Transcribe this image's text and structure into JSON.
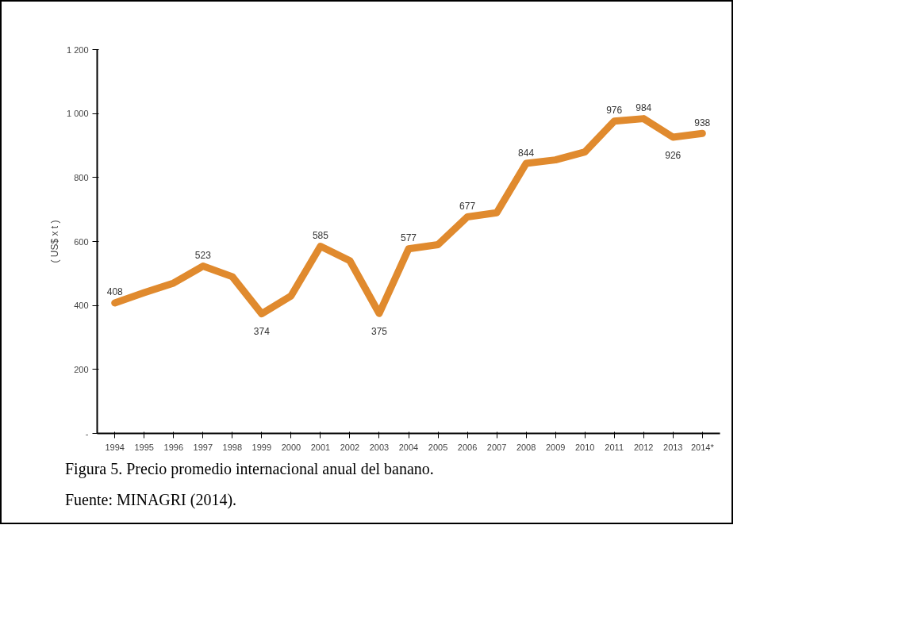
{
  "chart_data": {
    "type": "line",
    "ylabel": "( US$ x t )",
    "categories": [
      "1994",
      "1995",
      "1996",
      "1997",
      "1998",
      "1999",
      "2000",
      "2001",
      "2002",
      "2003",
      "2004",
      "2005",
      "2006",
      "2007",
      "2008",
      "2009",
      "2010",
      "2011",
      "2012",
      "2013",
      "2014*"
    ],
    "series": [
      {
        "color": "#e08a2e",
        "values": [
          408,
          440,
          470,
          523,
          490,
          374,
          430,
          585,
          540,
          375,
          577,
          590,
          677,
          690,
          844,
          855,
          880,
          976,
          984,
          926,
          938
        ]
      }
    ],
    "value_labels": [
      "408",
      null,
      null,
      "523",
      null,
      "374",
      null,
      "585",
      null,
      "375",
      "577",
      null,
      "677",
      null,
      "844",
      null,
      null,
      "976",
      "984",
      "926",
      "938"
    ],
    "ylim": [
      0,
      1200
    ],
    "yticks": [
      {
        "value": 0,
        "label": "-"
      },
      200,
      400,
      600,
      800,
      {
        "value": 1000,
        "label": "1 000"
      },
      {
        "value": 1200,
        "label": "1 200"
      }
    ],
    "grid": false,
    "marker": "none",
    "line_style": "solid",
    "annotations": [
      "Figura 5. Precio promedio internacional anual del banano.",
      "Fuente: MINAGRI (2014)."
    ]
  }
}
